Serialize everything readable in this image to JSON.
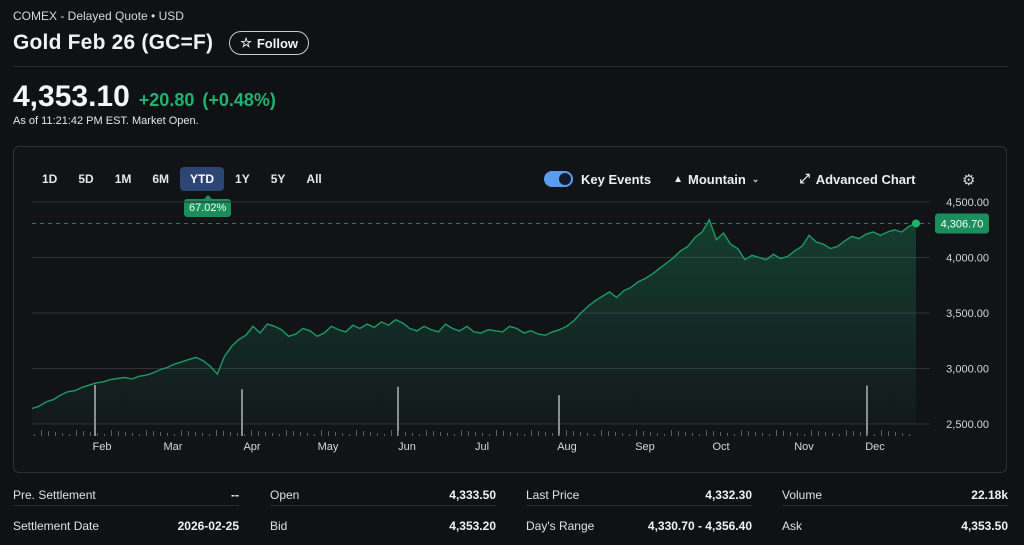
{
  "header": {
    "exchange": "COMEX - Delayed Quote • USD",
    "title": "Gold Feb 26 (GC=F)",
    "follow_label": "Follow"
  },
  "quote": {
    "price": "4,353.10",
    "change": "+20.80",
    "change_pct": "(+0.48%)",
    "as_of": "As of 11:21:42 PM EST. Market Open.",
    "up_color": "#1fb46e"
  },
  "chart_controls": {
    "ranges": [
      "1D",
      "5D",
      "1M",
      "6M",
      "YTD",
      "1Y",
      "5Y",
      "All"
    ],
    "active_range": "YTD",
    "ytd_badge": "67.02%",
    "key_events_label": "Key Events",
    "key_events_on": true,
    "chart_type_label": "Mountain",
    "advanced_label": "Advanced Chart"
  },
  "chart_data": {
    "type": "area",
    "y_ticks": [
      "4,500.00",
      "4,000.00",
      "3,500.00",
      "3,000.00",
      "2,500.00"
    ],
    "y_tick_values": [
      4500,
      4000,
      3500,
      3000,
      2500
    ],
    "ylim": [
      2500,
      4500
    ],
    "x_labels": [
      "Feb",
      "Mar",
      "Apr",
      "May",
      "Jun",
      "Jul",
      "Aug",
      "Sep",
      "Oct",
      "Nov",
      "Dec"
    ],
    "last_price_label": "4,306.70",
    "last_price": 4306.7,
    "grid": true,
    "line_color": "#1a9c63",
    "series": [
      {
        "values": [
          2640,
          2660,
          2700,
          2720,
          2760,
          2790,
          2800,
          2830,
          2850,
          2870,
          2880,
          2900,
          2910,
          2920,
          2905,
          2930,
          2940,
          2960,
          2990,
          3010,
          3040,
          3060,
          3080,
          3100,
          3070,
          3020,
          2950,
          3110,
          3200,
          3260,
          3300,
          3380,
          3320,
          3400,
          3380,
          3350,
          3290,
          3310,
          3360,
          3340,
          3290,
          3320,
          3380,
          3350,
          3330,
          3390,
          3360,
          3400,
          3370,
          3420,
          3390,
          3440,
          3410,
          3360,
          3340,
          3380,
          3350,
          3330,
          3400,
          3360,
          3340,
          3380,
          3330,
          3320,
          3350,
          3340,
          3330,
          3380,
          3360,
          3320,
          3340,
          3310,
          3300,
          3330,
          3350,
          3380,
          3430,
          3500,
          3560,
          3610,
          3650,
          3690,
          3640,
          3700,
          3730,
          3780,
          3810,
          3850,
          3900,
          3950,
          4000,
          4060,
          4100,
          4180,
          4230,
          4340,
          4160,
          4220,
          4120,
          4080,
          3980,
          4020,
          4000,
          3980,
          4030,
          3990,
          4010,
          4060,
          4100,
          4200,
          4140,
          4120,
          4080,
          4100,
          4150,
          4190,
          4170,
          4210,
          4230,
          4200,
          4230,
          4250,
          4230,
          4280,
          4306.7
        ]
      }
    ],
    "volume_spikes": [
      {
        "month_index": 0,
        "value": 0.85
      },
      {
        "month_index": 2,
        "value": 0.78
      },
      {
        "month_index": 4,
        "value": 0.82
      },
      {
        "month_index": 6,
        "value": 0.68
      },
      {
        "month_index": 10,
        "value": 0.84
      }
    ]
  },
  "stats": {
    "row1": [
      {
        "label": "Pre. Settlement",
        "value": "--"
      },
      {
        "label": "Open",
        "value": "4,333.50"
      },
      {
        "label": "Last Price",
        "value": "4,332.30"
      },
      {
        "label": "Volume",
        "value": "22.18k"
      }
    ],
    "row2": [
      {
        "label": "Settlement Date",
        "value": "2026-02-25"
      },
      {
        "label": "Bid",
        "value": "4,353.20"
      },
      {
        "label": "Day's Range",
        "value": "4,330.70 - 4,356.40"
      },
      {
        "label": "Ask",
        "value": "4,353.50"
      }
    ]
  },
  "icons": {
    "follow": "star-icon",
    "chart_type": "mountain-icon",
    "advanced": "expand-arrow-icon",
    "settings": "gear-icon"
  }
}
